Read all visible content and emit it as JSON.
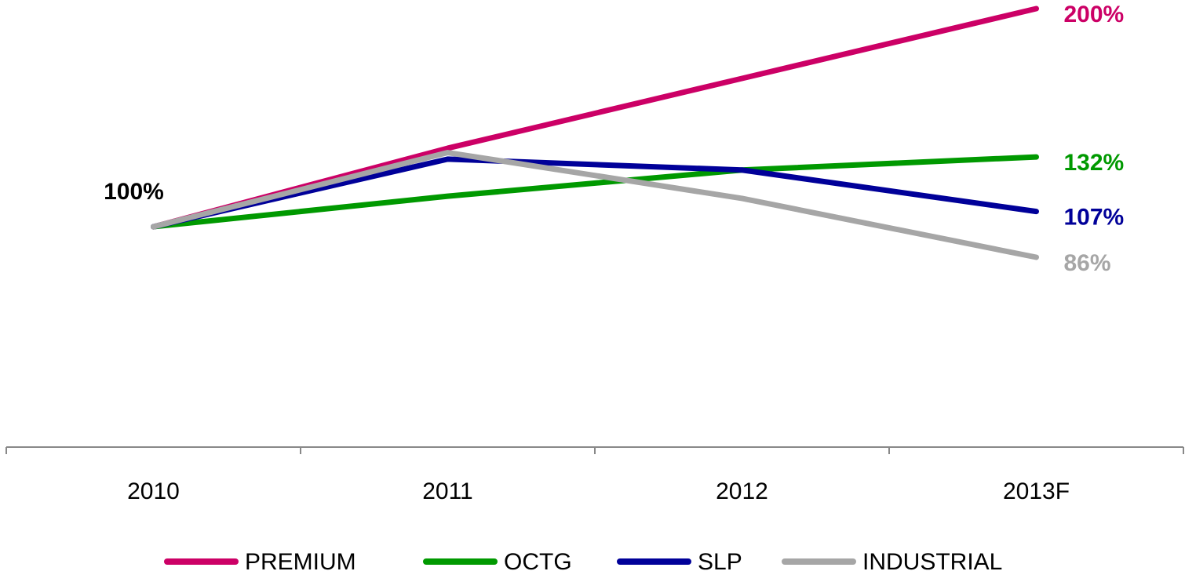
{
  "chart_data": {
    "type": "line",
    "categories": [
      "2010",
      "2011",
      "2012",
      "2013F"
    ],
    "series": [
      {
        "name": "PREMIUM",
        "color": "#cc0066",
        "values": [
          100,
          136,
          168,
          200
        ],
        "value_labels": [
          "100%",
          null,
          null,
          "200%"
        ]
      },
      {
        "name": "OCTG",
        "color": "#009900",
        "values": [
          100,
          114,
          126,
          132
        ],
        "value_labels": [
          null,
          null,
          null,
          "132%"
        ]
      },
      {
        "name": "SLP",
        "color": "#000099",
        "values": [
          100,
          131,
          126,
          107
        ],
        "value_labels": [
          null,
          null,
          null,
          "107%"
        ]
      },
      {
        "name": "INDUSTRIAL",
        "color": "#a6a6a6",
        "values": [
          100,
          134,
          113,
          86
        ],
        "value_labels": [
          null,
          null,
          null,
          "86%"
        ]
      }
    ]
  }
}
